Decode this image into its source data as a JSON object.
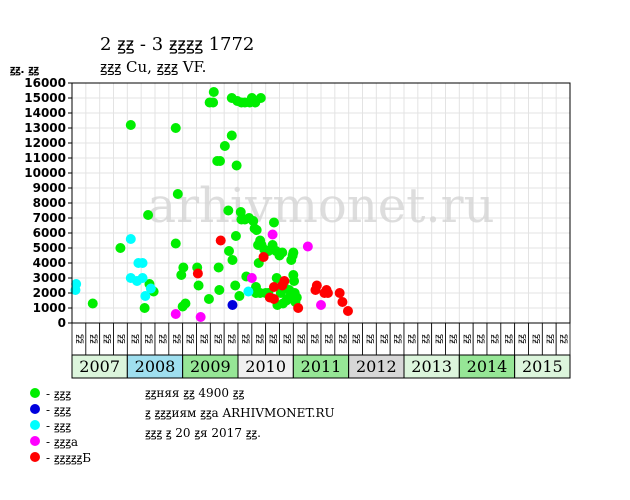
{
  "title": "2 ꙃꙃ - 3 ꙃꙃꙃꙃ 1772",
  "subtitle": "ꙃꙃꙃ Cu, ꙃꙃꙃ VF.",
  "watermark": "arhivmonet.ru",
  "legend": [
    {
      "color": "#00ee00",
      "label": "- ꙃꙃꙃ"
    },
    {
      "color": "#0000dd",
      "label": "- ꙃꙃꙃ"
    },
    {
      "color": "#00ffff",
      "label": "- ꙃꙃꙃ"
    },
    {
      "color": "#ff00ff",
      "label": "- ꙃꙃꙃa"
    },
    {
      "color": "#ff0000",
      "label": "- ꙃꙃꙃꙃꙃБ"
    }
  ],
  "notes": {
    "line1": "ꙃꙃняя ꙃꙃ 4900 ꙃꙃ",
    "line2": "ꙃ ꙃꙃꙃиям ꙃꙃa ARHIVMONET.RU",
    "line3": "ꙃꙃꙃ ꙃ 20 ꙃя 2017 ꙃꙃ."
  },
  "chart_data": {
    "type": "scatter",
    "ylabel": "ꙃꙃ. ꙃꙃ",
    "ylim": [
      0,
      16000
    ],
    "yticks": [
      0,
      1000,
      2000,
      3000,
      4000,
      5000,
      6000,
      7000,
      8000,
      9000,
      10000,
      11000,
      12000,
      13000,
      14000,
      15000,
      16000
    ],
    "quarter_labels": [
      "ꙃꙃ",
      "ꙃꙃ",
      "ꙃꙃ",
      "ꙃꙃ"
    ],
    "years": [
      {
        "label": "2007",
        "color": "#dcf5dc"
      },
      {
        "label": "2008",
        "color": "#9fdfef"
      },
      {
        "label": "2009",
        "color": "#96e696"
      },
      {
        "label": "2010",
        "color": "#f0f0f0"
      },
      {
        "label": "2011",
        "color": "#96e696"
      },
      {
        "label": "2012",
        "color": "#d7d7d7"
      },
      {
        "label": "2013",
        "color": "#dcf5dc"
      },
      {
        "label": "2014",
        "color": "#96e696"
      },
      {
        "label": "2015",
        "color": "#dcf5dc"
      }
    ],
    "grid": true,
    "series": [
      {
        "color": "#00ee00",
        "points": [
          [
            1.0,
            1300
          ],
          [
            3.0,
            5000
          ],
          [
            3.75,
            13200
          ],
          [
            4.75,
            1000
          ],
          [
            5.0,
            7200
          ],
          [
            5.1,
            2600
          ],
          [
            5.4,
            2100
          ],
          [
            7.0,
            13000
          ],
          [
            7.0,
            5300
          ],
          [
            7.15,
            8600
          ],
          [
            7.4,
            3200
          ],
          [
            7.55,
            3700
          ],
          [
            7.5,
            1100
          ],
          [
            7.7,
            1300
          ],
          [
            8.55,
            3700
          ],
          [
            8.65,
            2500
          ],
          [
            9.4,
            1600
          ],
          [
            9.45,
            14700
          ],
          [
            9.7,
            14700
          ],
          [
            9.75,
            15400
          ],
          [
            10.0,
            10800
          ],
          [
            10.2,
            10800
          ],
          [
            10.1,
            3700
          ],
          [
            10.15,
            2200
          ],
          [
            10.55,
            11800
          ],
          [
            10.8,
            7500
          ],
          [
            10.85,
            4800
          ],
          [
            11.05,
            15000
          ],
          [
            11.05,
            12500
          ],
          [
            11.1,
            4200
          ],
          [
            11.3,
            2500
          ],
          [
            11.35,
            5800
          ],
          [
            11.4,
            10500
          ],
          [
            11.45,
            14800
          ],
          [
            11.6,
            1800
          ],
          [
            11.75,
            14700
          ],
          [
            11.75,
            6900
          ],
          [
            11.7,
            7400
          ],
          [
            12.0,
            14700
          ],
          [
            12.0,
            6900
          ],
          [
            12.1,
            3100
          ],
          [
            12.35,
            14700
          ],
          [
            12.3,
            7000
          ],
          [
            12.5,
            15000
          ],
          [
            12.6,
            6800
          ],
          [
            12.75,
            14700
          ],
          [
            12.8,
            2400
          ],
          [
            12.7,
            6300
          ],
          [
            12.8,
            2000
          ],
          [
            12.85,
            6200
          ],
          [
            12.95,
            5200
          ],
          [
            13.0,
            4000
          ],
          [
            13.1,
            5500
          ],
          [
            13.15,
            15000
          ],
          [
            13.2,
            5200
          ],
          [
            13.1,
            2000
          ],
          [
            13.4,
            4900
          ],
          [
            13.5,
            2000
          ],
          [
            13.7,
            4800
          ],
          [
            13.7,
            2000
          ],
          [
            14.0,
            5200
          ],
          [
            14.1,
            6700
          ],
          [
            14.25,
            4800
          ],
          [
            14.3,
            3000
          ],
          [
            14.35,
            1200
          ],
          [
            14.5,
            4500
          ],
          [
            14.7,
            2700
          ],
          [
            14.6,
            2000
          ],
          [
            14.75,
            1300
          ],
          [
            14.8,
            2500
          ],
          [
            14.7,
            4700
          ],
          [
            15.0,
            1500
          ],
          [
            15.1,
            1600
          ],
          [
            15.2,
            2200
          ],
          [
            15.35,
            4200
          ],
          [
            15.45,
            4500
          ],
          [
            15.5,
            4700
          ],
          [
            15.5,
            3200
          ],
          [
            15.3,
            1800
          ],
          [
            15.55,
            2800
          ],
          [
            15.6,
            2000
          ],
          [
            15.65,
            1400
          ],
          [
            15.75,
            1700
          ]
        ]
      },
      {
        "color": "#0000dd",
        "points": [
          [
            11.1,
            1200
          ]
        ]
      },
      {
        "color": "#00ffff",
        "points": [
          [
            -0.25,
            2200
          ],
          [
            -0.2,
            2600
          ],
          [
            3.75,
            5600
          ],
          [
            3.75,
            3000
          ],
          [
            4.2,
            2800
          ],
          [
            4.3,
            4000
          ],
          [
            4.6,
            4000
          ],
          [
            4.6,
            3000
          ],
          [
            4.8,
            1800
          ],
          [
            5.2,
            2300
          ],
          [
            12.25,
            2100
          ]
        ]
      },
      {
        "color": "#ff00ff",
        "points": [
          [
            7.0,
            600
          ],
          [
            8.8,
            400
          ],
          [
            12.5,
            3000
          ],
          [
            14.0,
            5900
          ],
          [
            16.55,
            5100
          ],
          [
            17.5,
            1200
          ]
        ]
      },
      {
        "color": "#ff0000",
        "points": [
          [
            8.6,
            3300
          ],
          [
            10.25,
            5500
          ],
          [
            13.35,
            4400
          ],
          [
            13.8,
            1700
          ],
          [
            14.1,
            1600
          ],
          [
            14.1,
            2400
          ],
          [
            14.7,
            2500
          ],
          [
            14.85,
            2800
          ],
          [
            15.85,
            1000
          ],
          [
            17.1,
            2200
          ],
          [
            17.2,
            2500
          ],
          [
            17.75,
            2000
          ],
          [
            17.9,
            2200
          ],
          [
            18.0,
            2000
          ],
          [
            18.85,
            2000
          ],
          [
            19.05,
            1400
          ],
          [
            19.45,
            800
          ]
        ]
      }
    ]
  }
}
